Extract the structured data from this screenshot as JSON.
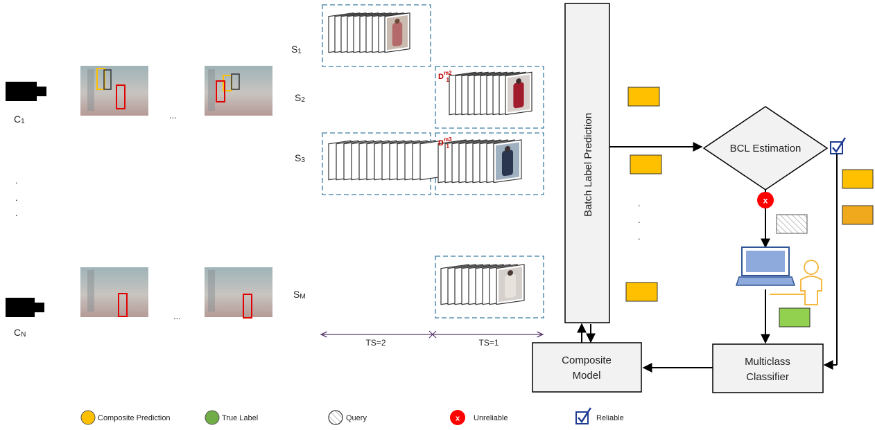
{
  "cameras": [
    {
      "label": "C",
      "sub": "1"
    },
    {
      "label": "C",
      "sub": "N"
    }
  ],
  "ellipsis_h": "...",
  "dots_v": ".",
  "streams": [
    {
      "label": "S",
      "sub": "1"
    },
    {
      "label": "S",
      "sub": "2"
    },
    {
      "label": "S",
      "sub": "3"
    },
    {
      "label": "S",
      "sub": "M"
    }
  ],
  "d_labels": [
    {
      "base": "D",
      "sup": "m2",
      "sub": "1"
    },
    {
      "base": "D",
      "sup": "m3",
      "sub": "1"
    }
  ],
  "timesteps": [
    "TS=2",
    "TS=1"
  ],
  "blocks": {
    "batch_label_prediction": "Batch Label Prediction",
    "bcl_estimation": "BCL Estimation",
    "composite_model": [
      "Composite",
      "Model"
    ],
    "multiclass_classifier": [
      "Multiclass",
      "Classifier"
    ]
  },
  "unreliable_mark": "x",
  "legend": [
    {
      "name": "composite-prediction",
      "label": "Composite Prediction",
      "color": "#FFC000"
    },
    {
      "name": "true-label",
      "label": "True Label",
      "color": "#70AD47"
    },
    {
      "name": "query",
      "label": "Query",
      "color": "#dddddd"
    },
    {
      "name": "unreliable",
      "label": "Unreliable",
      "color": "#FF0000"
    },
    {
      "name": "reliable",
      "label": "Reliable",
      "color": "#1F3A93"
    }
  ],
  "colors": {
    "composite": "#FFC000",
    "composite_dark": "#F0A81C",
    "true_label": "#92D050",
    "dashed_box": "#3A7CA5",
    "timeline": "#5B3A6E",
    "block_fill": "#F2F2F2",
    "laptop": "#8EA9DB",
    "user": "#F4B942",
    "d_label": "#C00000"
  }
}
